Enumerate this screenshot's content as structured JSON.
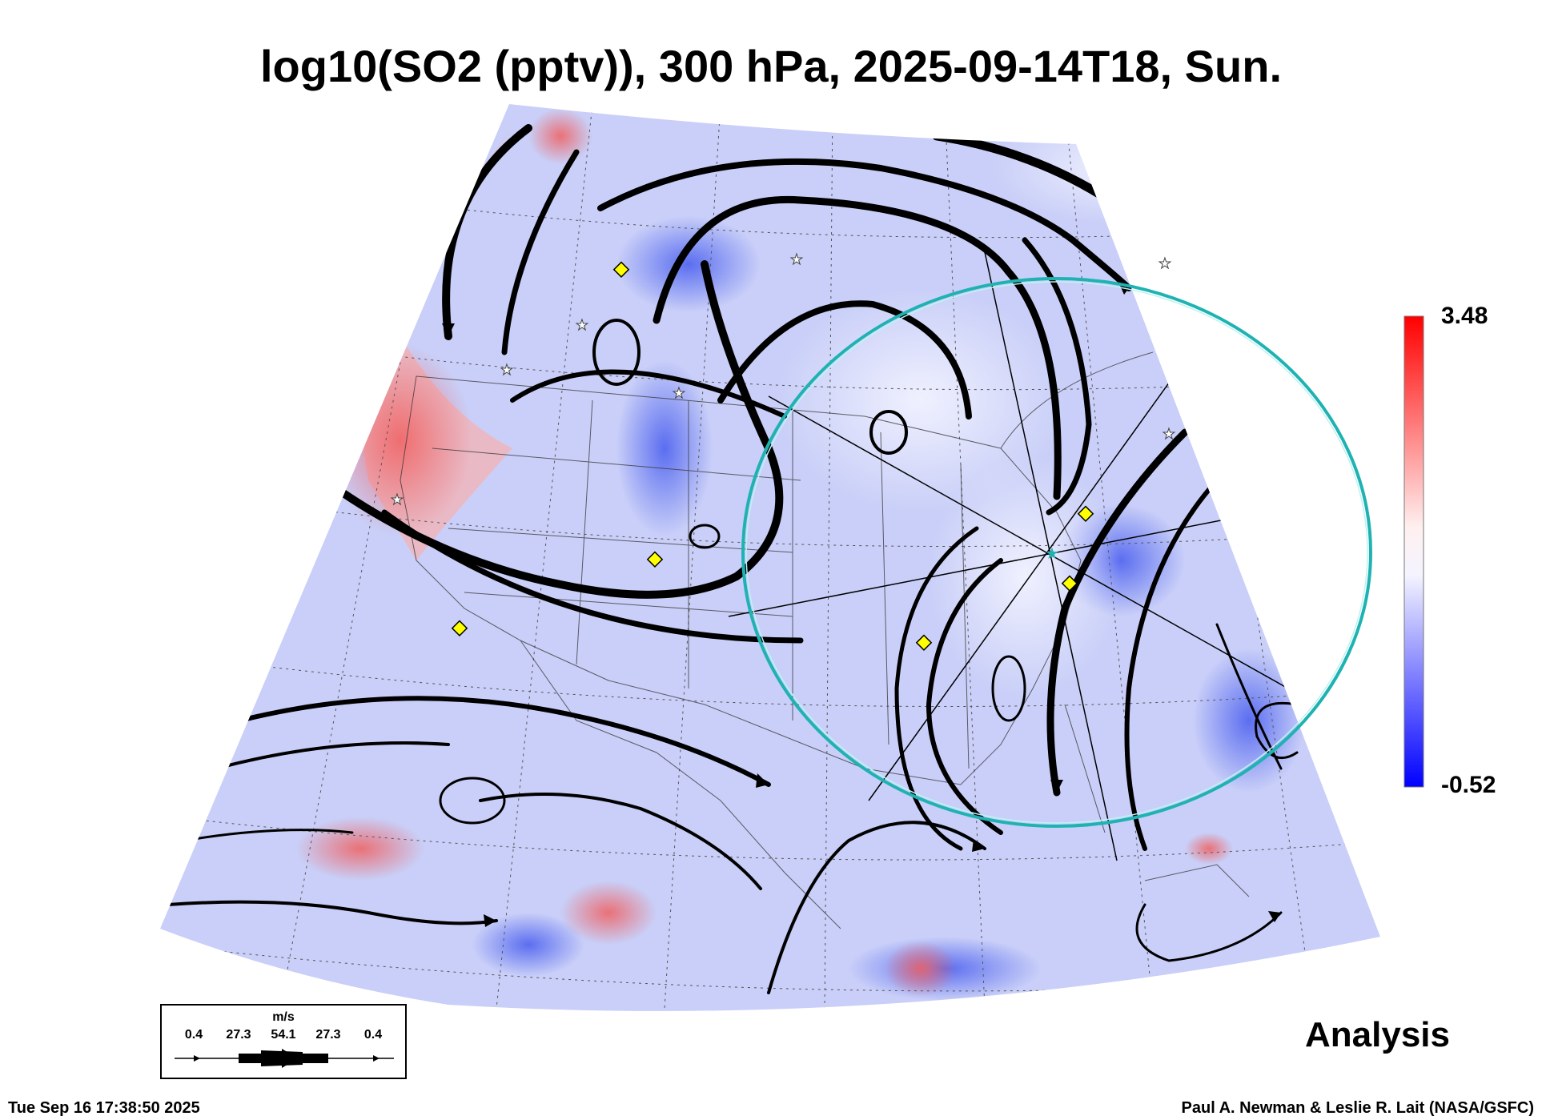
{
  "title": "log10(SO2 (pptv)), 300 hPa, 2025-09-14T18, Sun.",
  "colorbar": {
    "max_label": "3.48",
    "min_label": "-0.52",
    "min_value": -0.52,
    "max_value": 3.48,
    "colors": {
      "high": "#ff0000",
      "mid": "#ffffff",
      "low": "#0000ff"
    }
  },
  "legend": {
    "units": "m/s",
    "ticks": [
      "0.4",
      "27.3",
      "54.1",
      "27.3",
      "0.4"
    ]
  },
  "label_analysis": "Analysis",
  "footer": {
    "timestamp": "Tue Sep 16 17:38:50 2025",
    "credit": "Paul A. Newman & Leslie R. Lait (NASA/GSFC)"
  },
  "colors": {
    "background_field": "#cdd3fb",
    "streamline": "#000000",
    "ring": "#20b2b2",
    "site_marker": "#ffff00"
  },
  "icons": [
    "site-marker-diamond-icon",
    "station-star-icon",
    "center-star-icon"
  ]
}
